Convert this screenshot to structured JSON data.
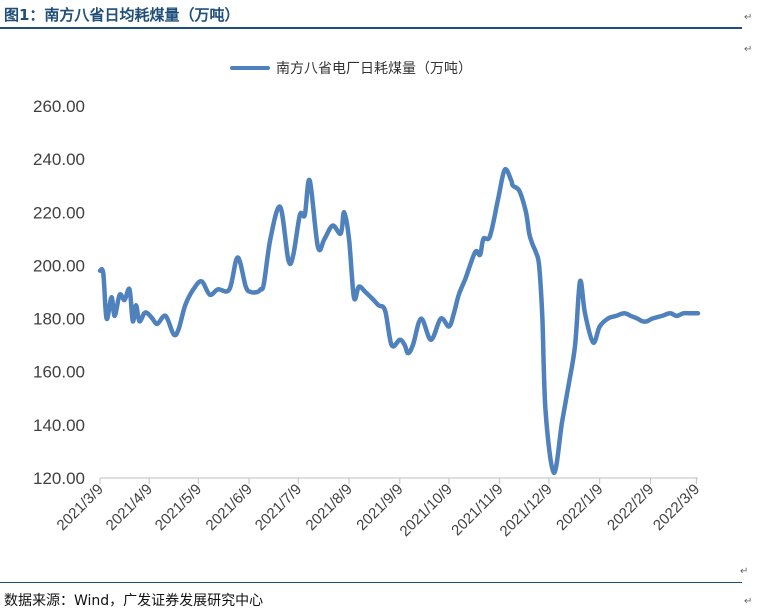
{
  "figure": {
    "title": "图1：南方八省日均耗煤量（万吨）",
    "source": "数据来源：Wind，广发证券发展研究中心"
  },
  "chart_data": {
    "type": "line",
    "title": "",
    "xlabel": "",
    "ylabel": "",
    "ylim": [
      120,
      260
    ],
    "yticks": [
      120,
      140,
      160,
      180,
      200,
      220,
      240,
      260
    ],
    "ytick_labels": [
      "120.00",
      "140.00",
      "160.00",
      "180.00",
      "200.00",
      "220.00",
      "240.00",
      "260.00"
    ],
    "x_index_range": [
      0,
      365
    ],
    "xticks": [
      0,
      30,
      60,
      91,
      121,
      152,
      183,
      213,
      244,
      274,
      305,
      336,
      364
    ],
    "xtick_labels": [
      "2021/3/9",
      "2021/4/9",
      "2021/5/9",
      "2021/6/9",
      "2021/7/9",
      "2021/8/9",
      "2021/9/9",
      "2021/10/9",
      "2021/11/9",
      "2021/12/9",
      "2022/1/9",
      "2022/2/9",
      "2022/3/9"
    ],
    "legend": "top-center",
    "series": [
      {
        "name": "南方八省电厂日耗煤量（万吨）",
        "color": "#4f81bd",
        "x": [
          0,
          2,
          4,
          7,
          9,
          12,
          15,
          18,
          20,
          22,
          24,
          27,
          29,
          32,
          35,
          40,
          45,
          48,
          52,
          57,
          62,
          67,
          72,
          79,
          84,
          89,
          92,
          96,
          98,
          100,
          104,
          110,
          115,
          118,
          122,
          125,
          128,
          133,
          137,
          142,
          147,
          149,
          152,
          155,
          158,
          162,
          167,
          170,
          174,
          178,
          183,
          186,
          188,
          191,
          196,
          202,
          208,
          213,
          216,
          219,
          223,
          229,
          232,
          234,
          238,
          243,
          247,
          251,
          252,
          256,
          260,
          262,
          264,
          266,
          268,
          270,
          272,
          277,
          282,
          286,
          290,
          293,
          296,
          301,
          305,
          310,
          315,
          320,
          324,
          328,
          331,
          334,
          337,
          343,
          348,
          352,
          356,
          360,
          365
        ],
        "values": [
          198,
          197,
          180,
          188,
          181,
          189,
          187,
          191,
          179,
          185,
          179,
          182,
          182,
          180,
          178,
          181,
          174,
          176,
          185,
          191,
          194,
          189,
          191,
          191,
          203,
          192,
          190,
          190,
          191,
          193,
          210,
          222,
          202,
          204,
          219,
          219,
          232,
          207,
          210,
          215,
          212,
          220,
          210,
          188,
          192,
          190,
          187,
          185,
          183,
          170,
          172,
          170,
          167,
          170,
          180,
          172,
          180,
          177,
          182,
          189,
          195,
          205,
          204,
          210,
          211,
          225,
          236,
          232,
          230,
          228,
          220,
          212,
          208,
          205,
          200,
          180,
          145,
          122,
          141,
          155,
          170,
          194,
          182,
          171,
          177,
          180,
          181,
          182,
          181,
          180,
          179,
          179,
          180,
          181,
          182,
          181,
          182,
          182,
          182
        ]
      }
    ]
  }
}
